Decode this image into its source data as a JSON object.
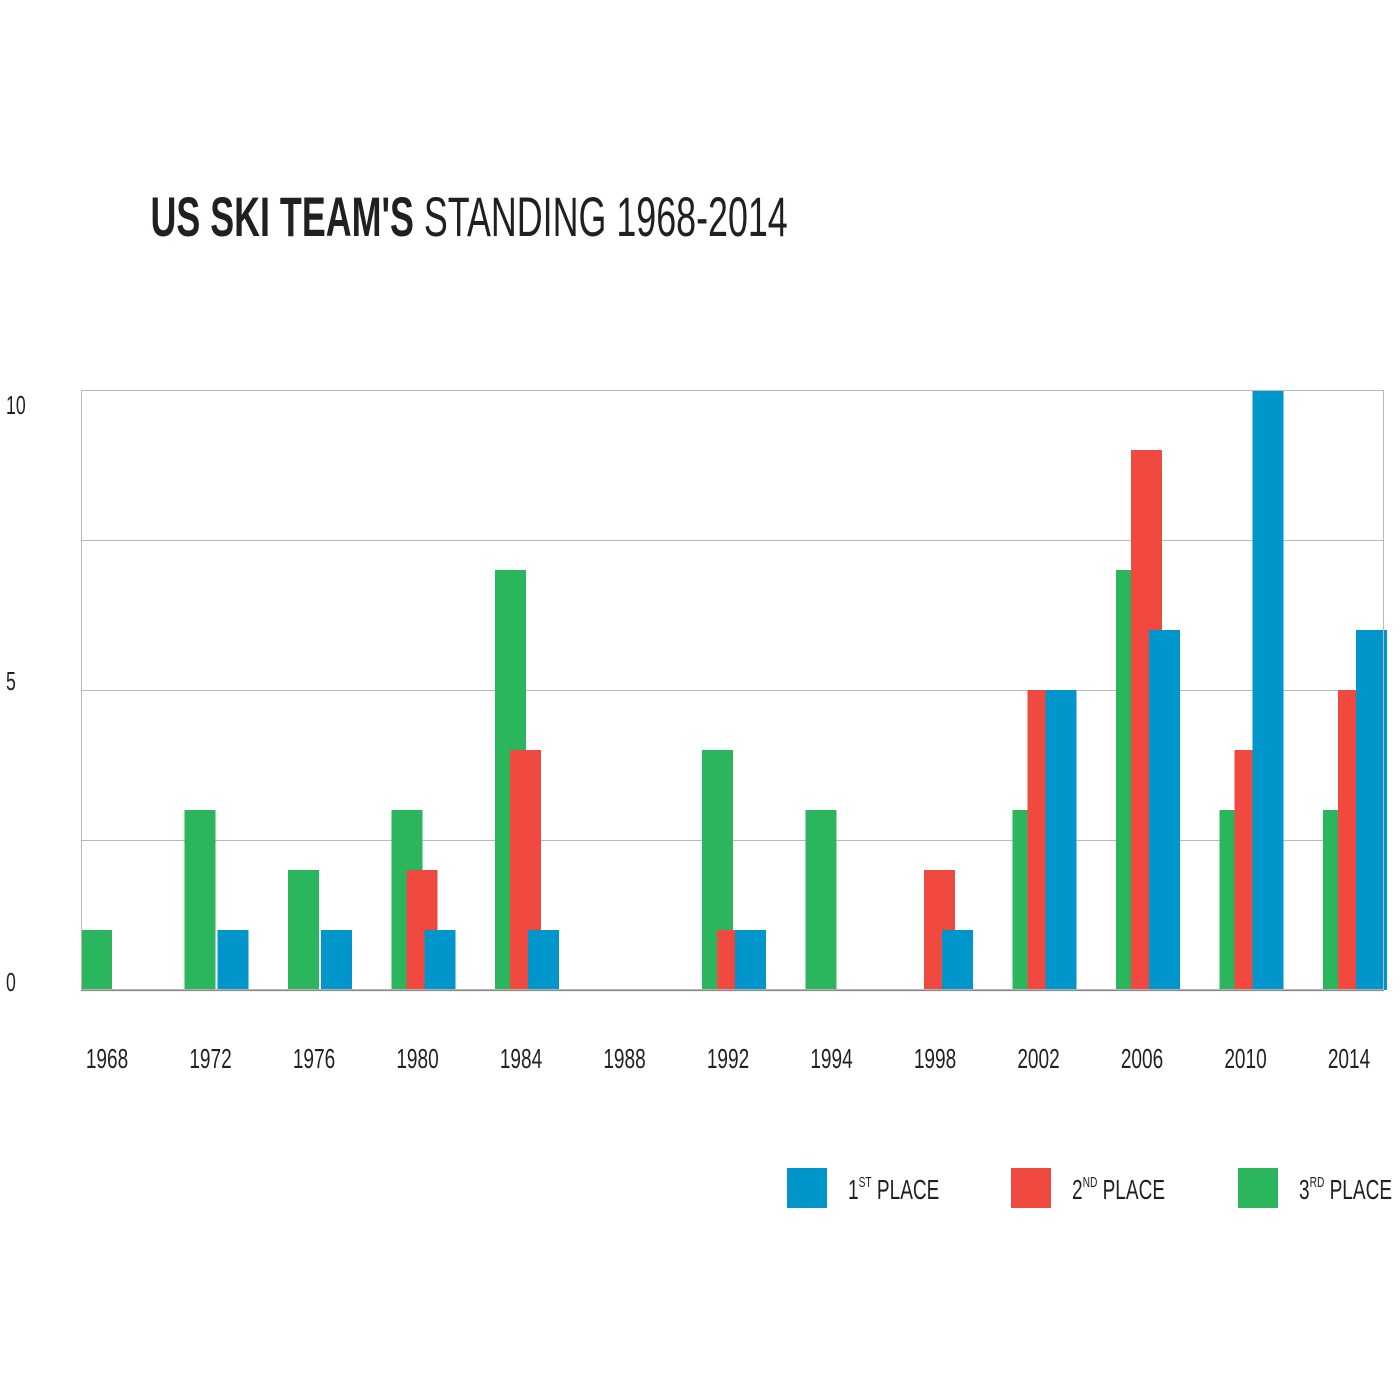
{
  "title": {
    "bold": "US SKI TEAM'S",
    "light": "STANDING 1968-2014"
  },
  "chart_data": {
    "type": "bar",
    "title": "US SKI TEAM'S STANDING 1968-2014",
    "xlabel": "",
    "ylabel": "",
    "ylim": [
      0,
      10
    ],
    "yticks": [
      0,
      5,
      10
    ],
    "grid": true,
    "legend_position": "bottom-right",
    "categories": [
      "1968",
      "1972",
      "1976",
      "1980",
      "1984",
      "1988",
      "1992",
      "1994",
      "1998",
      "2002",
      "2006",
      "2010",
      "2014"
    ],
    "series": [
      {
        "name": "3RD PLACE",
        "key": "third",
        "color": "#2bb65e",
        "values": [
          1,
          3,
          2,
          3,
          7,
          0,
          4,
          3,
          0,
          3,
          7,
          3,
          3
        ]
      },
      {
        "name": "2ND PLACE",
        "key": "second",
        "color": "#f04a40",
        "values": [
          0,
          0,
          0,
          2,
          4,
          0,
          1,
          0,
          2,
          5,
          9,
          4,
          5
        ]
      },
      {
        "name": "1ST PLACE",
        "key": "first",
        "color": "#0096cb",
        "values": [
          0,
          1,
          1,
          1,
          1,
          0,
          1,
          0,
          1,
          5,
          6,
          10,
          6
        ]
      }
    ],
    "legend": [
      {
        "main": "1",
        "sup": "ST",
        "rest": " PLACE",
        "color": "#0096cb"
      },
      {
        "main": "2",
        "sup": "ND",
        "rest": " PLACE",
        "color": "#f04a40"
      },
      {
        "main": "3",
        "sup": "RD",
        "rest": " PLACE",
        "color": "#2bb65e"
      }
    ]
  }
}
